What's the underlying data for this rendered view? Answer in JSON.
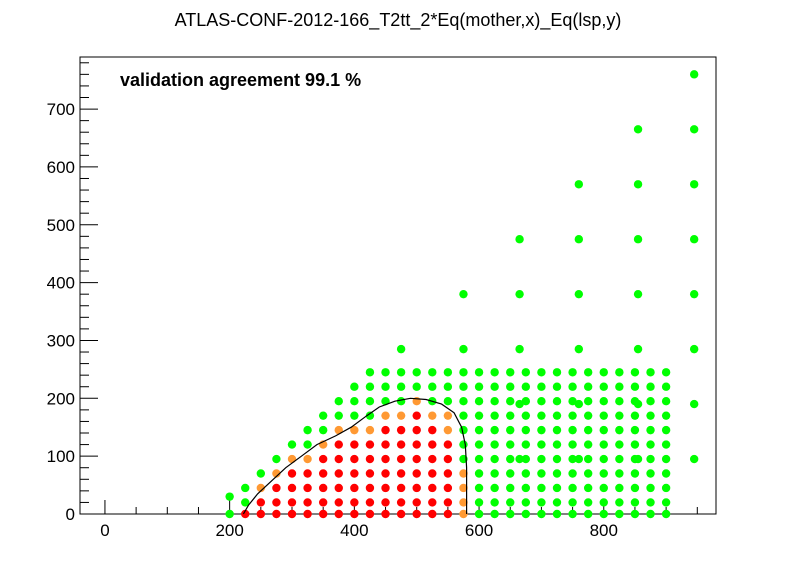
{
  "chart_data": {
    "type": "scatter",
    "title": "ATLAS-CONF-2012-166_T2tt_2*Eq(mother,x)_Eq(lsp,y)",
    "annotation": "validation agreement 99.1 %",
    "xlabel": "",
    "ylabel": "",
    "xlim": [
      -40,
      980
    ],
    "ylim": [
      0,
      790
    ],
    "x_ticks": [
      0,
      200,
      400,
      600,
      800
    ],
    "y_ticks": [
      0,
      100,
      200,
      300,
      400,
      500,
      600,
      700
    ],
    "colors": {
      "excluded": "#ff0000",
      "borderline": "#ff9933",
      "allowed": "#00ff00",
      "contour": "#000000"
    },
    "grid": false,
    "excluded_points": [
      [
        225,
        0
      ],
      [
        250,
        0
      ],
      [
        250,
        20
      ],
      [
        275,
        0
      ],
      [
        275,
        20
      ],
      [
        275,
        45
      ],
      [
        300,
        0
      ],
      [
        300,
        20
      ],
      [
        300,
        45
      ],
      [
        300,
        70
      ],
      [
        325,
        0
      ],
      [
        325,
        20
      ],
      [
        325,
        45
      ],
      [
        325,
        70
      ],
      [
        350,
        0
      ],
      [
        350,
        20
      ],
      [
        350,
        45
      ],
      [
        350,
        70
      ],
      [
        350,
        95
      ],
      [
        375,
        0
      ],
      [
        375,
        20
      ],
      [
        375,
        45
      ],
      [
        375,
        70
      ],
      [
        375,
        95
      ],
      [
        375,
        120
      ],
      [
        400,
        0
      ],
      [
        400,
        20
      ],
      [
        400,
        45
      ],
      [
        400,
        70
      ],
      [
        400,
        95
      ],
      [
        400,
        120
      ],
      [
        425,
        0
      ],
      [
        425,
        20
      ],
      [
        425,
        45
      ],
      [
        425,
        70
      ],
      [
        425,
        95
      ],
      [
        425,
        120
      ],
      [
        450,
        0
      ],
      [
        450,
        20
      ],
      [
        450,
        45
      ],
      [
        450,
        70
      ],
      [
        450,
        95
      ],
      [
        450,
        120
      ],
      [
        450,
        145
      ],
      [
        475,
        0
      ],
      [
        475,
        20
      ],
      [
        475,
        45
      ],
      [
        475,
        70
      ],
      [
        475,
        95
      ],
      [
        475,
        120
      ],
      [
        475,
        145
      ],
      [
        500,
        0
      ],
      [
        500,
        20
      ],
      [
        500,
        45
      ],
      [
        500,
        70
      ],
      [
        500,
        95
      ],
      [
        500,
        120
      ],
      [
        500,
        145
      ],
      [
        500,
        170
      ],
      [
        525,
        0
      ],
      [
        525,
        20
      ],
      [
        525,
        45
      ],
      [
        525,
        70
      ],
      [
        525,
        95
      ],
      [
        525,
        120
      ],
      [
        525,
        145
      ],
      [
        550,
        0
      ],
      [
        550,
        20
      ],
      [
        550,
        45
      ],
      [
        550,
        70
      ],
      [
        550,
        95
      ],
      [
        550,
        120
      ]
    ],
    "borderline_points": [
      [
        250,
        45
      ],
      [
        275,
        70
      ],
      [
        300,
        95
      ],
      [
        325,
        95
      ],
      [
        350,
        120
      ],
      [
        375,
        145
      ],
      [
        400,
        145
      ],
      [
        425,
        145
      ],
      [
        450,
        170
      ],
      [
        475,
        170
      ],
      [
        500,
        195
      ],
      [
        525,
        170
      ],
      [
        550,
        145
      ],
      [
        550,
        170
      ],
      [
        575,
        0
      ],
      [
        575,
        20
      ],
      [
        575,
        45
      ],
      [
        575,
        70
      ]
    ],
    "allowed_points": [
      [
        200,
        0
      ],
      [
        200,
        30
      ],
      [
        225,
        20
      ],
      [
        225,
        45
      ],
      [
        250,
        70
      ],
      [
        275,
        95
      ],
      [
        300,
        120
      ],
      [
        325,
        120
      ],
      [
        325,
        145
      ],
      [
        350,
        145
      ],
      [
        350,
        170
      ],
      [
        375,
        170
      ],
      [
        375,
        195
      ],
      [
        400,
        170
      ],
      [
        400,
        195
      ],
      [
        400,
        220
      ],
      [
        425,
        170
      ],
      [
        425,
        195
      ],
      [
        425,
        220
      ],
      [
        425,
        245
      ],
      [
        450,
        195
      ],
      [
        450,
        220
      ],
      [
        450,
        245
      ],
      [
        475,
        195
      ],
      [
        475,
        220
      ],
      [
        475,
        245
      ],
      [
        475,
        285
      ],
      [
        500,
        220
      ],
      [
        500,
        245
      ],
      [
        525,
        195
      ],
      [
        525,
        220
      ],
      [
        525,
        245
      ],
      [
        550,
        195
      ],
      [
        550,
        220
      ],
      [
        550,
        245
      ],
      [
        575,
        95
      ],
      [
        575,
        120
      ],
      [
        575,
        145
      ],
      [
        575,
        170
      ],
      [
        575,
        195
      ],
      [
        575,
        220
      ],
      [
        575,
        245
      ],
      [
        575,
        285
      ],
      [
        575,
        380
      ],
      [
        600,
        0
      ],
      [
        600,
        20
      ],
      [
        600,
        45
      ],
      [
        600,
        70
      ],
      [
        600,
        95
      ],
      [
        600,
        120
      ],
      [
        600,
        145
      ],
      [
        600,
        170
      ],
      [
        600,
        195
      ],
      [
        600,
        220
      ],
      [
        600,
        245
      ],
      [
        625,
        0
      ],
      [
        625,
        20
      ],
      [
        625,
        45
      ],
      [
        625,
        70
      ],
      [
        625,
        95
      ],
      [
        625,
        120
      ],
      [
        625,
        145
      ],
      [
        625,
        170
      ],
      [
        625,
        195
      ],
      [
        625,
        220
      ],
      [
        625,
        245
      ],
      [
        650,
        0
      ],
      [
        650,
        20
      ],
      [
        650,
        45
      ],
      [
        650,
        70
      ],
      [
        650,
        95
      ],
      [
        650,
        120
      ],
      [
        650,
        145
      ],
      [
        650,
        170
      ],
      [
        650,
        195
      ],
      [
        650,
        220
      ],
      [
        650,
        245
      ],
      [
        665,
        95
      ],
      [
        665,
        190
      ],
      [
        665,
        285
      ],
      [
        665,
        380
      ],
      [
        665,
        475
      ],
      [
        675,
        0
      ],
      [
        675,
        20
      ],
      [
        675,
        45
      ],
      [
        675,
        70
      ],
      [
        675,
        95
      ],
      [
        675,
        120
      ],
      [
        675,
        145
      ],
      [
        675,
        170
      ],
      [
        675,
        195
      ],
      [
        675,
        220
      ],
      [
        675,
        245
      ],
      [
        700,
        0
      ],
      [
        700,
        20
      ],
      [
        700,
        45
      ],
      [
        700,
        70
      ],
      [
        700,
        95
      ],
      [
        700,
        120
      ],
      [
        700,
        145
      ],
      [
        700,
        170
      ],
      [
        700,
        195
      ],
      [
        700,
        220
      ],
      [
        700,
        245
      ],
      [
        725,
        0
      ],
      [
        725,
        20
      ],
      [
        725,
        45
      ],
      [
        725,
        70
      ],
      [
        725,
        95
      ],
      [
        725,
        120
      ],
      [
        725,
        145
      ],
      [
        725,
        170
      ],
      [
        725,
        195
      ],
      [
        725,
        220
      ],
      [
        725,
        245
      ],
      [
        750,
        0
      ],
      [
        750,
        20
      ],
      [
        750,
        45
      ],
      [
        750,
        70
      ],
      [
        750,
        95
      ],
      [
        750,
        120
      ],
      [
        750,
        145
      ],
      [
        750,
        170
      ],
      [
        750,
        195
      ],
      [
        750,
        220
      ],
      [
        750,
        245
      ],
      [
        760,
        95
      ],
      [
        760,
        190
      ],
      [
        760,
        285
      ],
      [
        760,
        380
      ],
      [
        760,
        475
      ],
      [
        760,
        570
      ],
      [
        775,
        0
      ],
      [
        775,
        20
      ],
      [
        775,
        45
      ],
      [
        775,
        70
      ],
      [
        775,
        95
      ],
      [
        775,
        120
      ],
      [
        775,
        145
      ],
      [
        775,
        170
      ],
      [
        775,
        195
      ],
      [
        775,
        220
      ],
      [
        775,
        245
      ],
      [
        800,
        0
      ],
      [
        800,
        20
      ],
      [
        800,
        45
      ],
      [
        800,
        70
      ],
      [
        800,
        95
      ],
      [
        800,
        120
      ],
      [
        800,
        145
      ],
      [
        800,
        170
      ],
      [
        800,
        195
      ],
      [
        800,
        220
      ],
      [
        800,
        245
      ],
      [
        825,
        0
      ],
      [
        825,
        20
      ],
      [
        825,
        45
      ],
      [
        825,
        70
      ],
      [
        825,
        95
      ],
      [
        825,
        120
      ],
      [
        825,
        145
      ],
      [
        825,
        170
      ],
      [
        825,
        195
      ],
      [
        825,
        220
      ],
      [
        825,
        245
      ],
      [
        850,
        0
      ],
      [
        850,
        20
      ],
      [
        850,
        45
      ],
      [
        850,
        70
      ],
      [
        850,
        95
      ],
      [
        850,
        120
      ],
      [
        850,
        145
      ],
      [
        850,
        170
      ],
      [
        850,
        195
      ],
      [
        850,
        220
      ],
      [
        850,
        245
      ],
      [
        855,
        95
      ],
      [
        855,
        190
      ],
      [
        855,
        285
      ],
      [
        855,
        380
      ],
      [
        855,
        475
      ],
      [
        855,
        570
      ],
      [
        855,
        665
      ],
      [
        875,
        0
      ],
      [
        875,
        20
      ],
      [
        875,
        45
      ],
      [
        875,
        70
      ],
      [
        875,
        95
      ],
      [
        875,
        120
      ],
      [
        875,
        145
      ],
      [
        875,
        170
      ],
      [
        875,
        195
      ],
      [
        875,
        220
      ],
      [
        875,
        245
      ],
      [
        900,
        0
      ],
      [
        900,
        20
      ],
      [
        900,
        45
      ],
      [
        900,
        70
      ],
      [
        900,
        95
      ],
      [
        900,
        120
      ],
      [
        900,
        145
      ],
      [
        900,
        170
      ],
      [
        900,
        195
      ],
      [
        900,
        220
      ],
      [
        900,
        245
      ],
      [
        945,
        95
      ],
      [
        945,
        190
      ],
      [
        945,
        285
      ],
      [
        945,
        380
      ],
      [
        945,
        475
      ],
      [
        945,
        570
      ],
      [
        945,
        665
      ],
      [
        945,
        760
      ]
    ],
    "contour": [
      [
        222,
        0
      ],
      [
        230,
        15
      ],
      [
        245,
        35
      ],
      [
        265,
        55
      ],
      [
        290,
        80
      ],
      [
        315,
        100
      ],
      [
        340,
        120
      ],
      [
        370,
        135
      ],
      [
        395,
        150
      ],
      [
        420,
        170
      ],
      [
        440,
        185
      ],
      [
        465,
        195
      ],
      [
        490,
        200
      ],
      [
        515,
        198
      ],
      [
        540,
        190
      ],
      [
        560,
        175
      ],
      [
        572,
        150
      ],
      [
        578,
        120
      ],
      [
        580,
        80
      ],
      [
        580,
        40
      ],
      [
        580,
        0
      ]
    ]
  }
}
